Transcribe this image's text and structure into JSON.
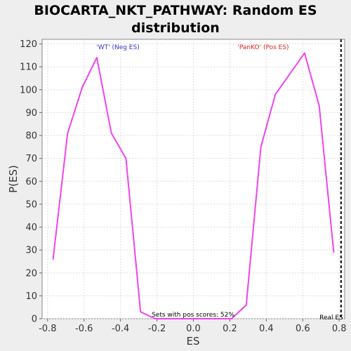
{
  "chart_data": {
    "type": "line",
    "title": "BIOCARTA_NKT_PATHWAY: Random ES distribution",
    "title_lines": [
      "BIOCARTA_NKT_PATHWAY: Random ES",
      "distribution"
    ],
    "xlabel": "ES",
    "ylabel": "P(ES)",
    "xlim": [
      -0.83,
      0.83
    ],
    "ylim": [
      0,
      122
    ],
    "x_ticks": [
      -0.8,
      -0.6,
      -0.4,
      -0.2,
      0.0,
      0.2,
      0.4,
      0.6,
      0.8
    ],
    "x_tick_labels": [
      "-0.8",
      "-0.6",
      "-0.4",
      "-0.2",
      "0.0",
      "0.2",
      "0.4",
      "0.6",
      "0.8"
    ],
    "y_ticks": [
      0,
      10,
      20,
      30,
      40,
      50,
      60,
      70,
      80,
      90,
      100,
      110,
      120
    ],
    "y_tick_labels": [
      "0",
      "10",
      "20",
      "30",
      "40",
      "50",
      "60",
      "70",
      "80",
      "90",
      "100",
      "110",
      "120"
    ],
    "grid": true,
    "series": [
      {
        "color": "#ee44ee",
        "x": [
          -0.77,
          -0.69,
          -0.61,
          -0.53,
          -0.45,
          -0.37,
          -0.29,
          -0.21,
          -0.13,
          -0.05,
          0.05,
          0.13,
          0.21,
          0.29,
          0.37,
          0.45,
          0.53,
          0.61,
          0.69,
          0.77
        ],
        "y": [
          26,
          81,
          101,
          114,
          81,
          70,
          3,
          0,
          0,
          0,
          0,
          0,
          0,
          6,
          75,
          98,
          107,
          116,
          93,
          29
        ]
      }
    ],
    "real_es": 0.81,
    "annotations": {
      "neg_label": "'WT' (Neg ES)",
      "pos_label": "'PanKO' (Pos ES)",
      "pos_scores": "Sets with pos scores: 52%",
      "real_es_label": "Real ES"
    },
    "colors": {
      "line": "#ee44ee",
      "neg_label": "#3333cc",
      "pos_label": "#dd2222",
      "real_es_line": "#000000",
      "plot_bg": "#ffffff",
      "grid": "#dddddd"
    }
  }
}
